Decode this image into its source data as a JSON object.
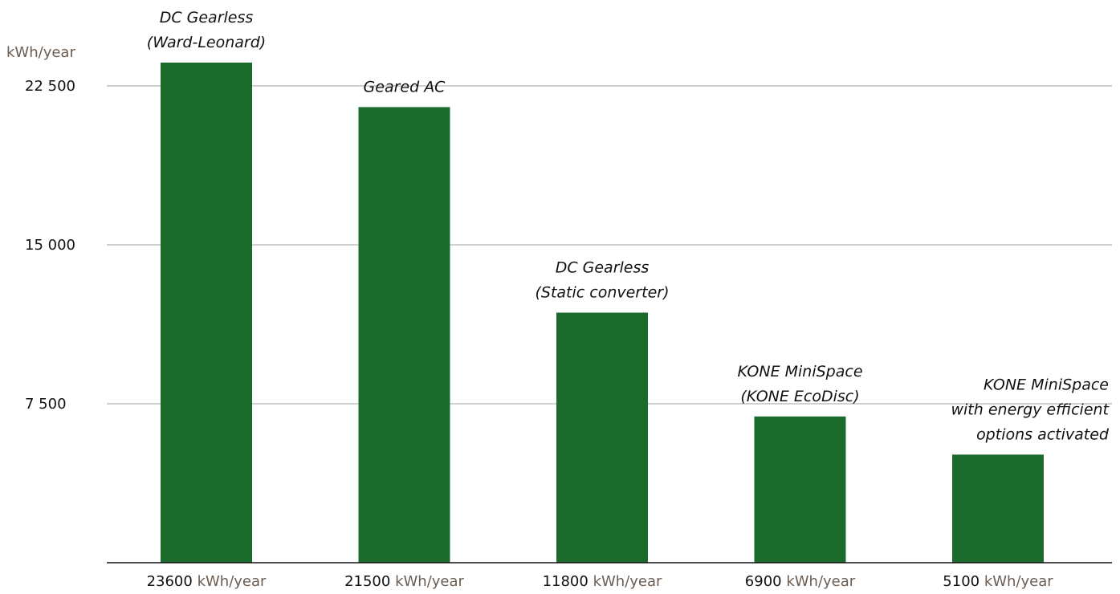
{
  "chart_data": {
    "type": "bar",
    "ylabel": "kWh/year",
    "ylim": [
      0,
      23800
    ],
    "yticks": [
      {
        "value": 7500,
        "label": "7 500"
      },
      {
        "value": 15000,
        "label": "15 000"
      },
      {
        "value": 22500,
        "label": "22 500"
      }
    ],
    "grid": true,
    "bar_color": "#1a6a2b",
    "unit_color": "#6b5d52",
    "categories": [
      [
        "DC Gearless",
        "(Ward-Leonard)"
      ],
      [
        "Geared AC"
      ],
      [
        "DC Gearless",
        "(Static converter)"
      ],
      [
        "KONE MiniSpace",
        "(KONE EcoDisc)"
      ],
      [
        "KONE MiniSpace",
        "with energy efficient",
        "options activated"
      ]
    ],
    "values": [
      23600,
      21500,
      11800,
      6900,
      5100
    ],
    "value_labels": [
      "23600",
      "21500",
      "11800",
      "6900",
      "5100"
    ],
    "value_unit": "kWh/year"
  }
}
